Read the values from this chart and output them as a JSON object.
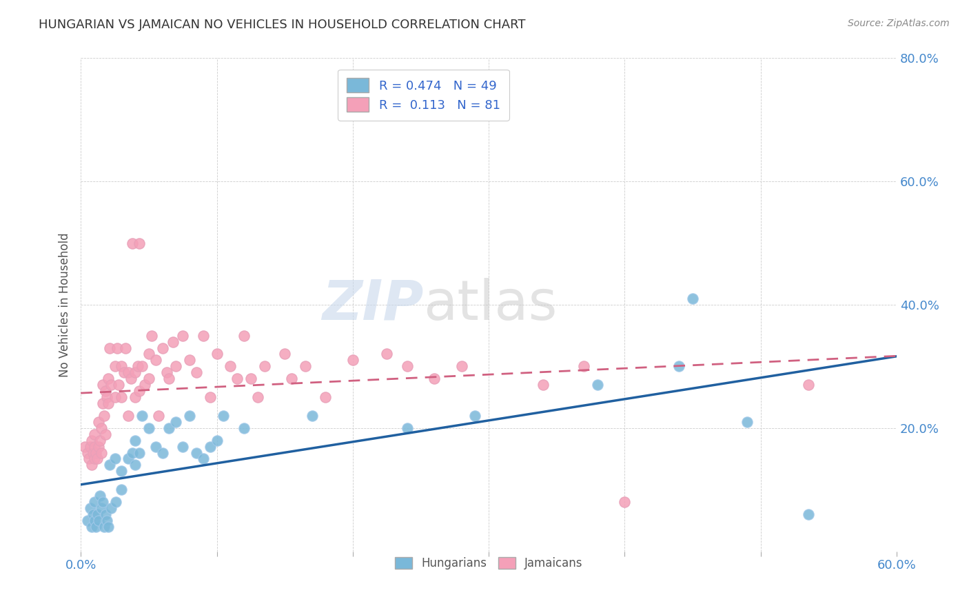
{
  "title": "HUNGARIAN VS JAMAICAN NO VEHICLES IN HOUSEHOLD CORRELATION CHART",
  "source": "Source: ZipAtlas.com",
  "ylabel": "No Vehicles in Household",
  "xlim": [
    0.0,
    0.6
  ],
  "ylim": [
    0.0,
    0.8
  ],
  "xticks": [
    0.0,
    0.1,
    0.2,
    0.3,
    0.4,
    0.5,
    0.6
  ],
  "yticks": [
    0.0,
    0.2,
    0.4,
    0.6,
    0.8
  ],
  "xtick_labels_show": [
    "0.0%",
    "",
    "",
    "",
    "",
    "",
    "60.0%"
  ],
  "ytick_labels": [
    "",
    "20.0%",
    "40.0%",
    "60.0%",
    "80.0%"
  ],
  "watermark_zip": "ZIP",
  "watermark_atlas": "atlas",
  "hungarian_color": "#7ab8d9",
  "jamaican_color": "#f4a0b8",
  "hungarian_line_color": "#2060a0",
  "jamaican_line_color": "#d06080",
  "hungarian_scatter": [
    [
      0.005,
      0.05
    ],
    [
      0.007,
      0.07
    ],
    [
      0.008,
      0.04
    ],
    [
      0.009,
      0.06
    ],
    [
      0.01,
      0.08
    ],
    [
      0.01,
      0.05
    ],
    [
      0.011,
      0.04
    ],
    [
      0.012,
      0.06
    ],
    [
      0.013,
      0.05
    ],
    [
      0.014,
      0.09
    ],
    [
      0.015,
      0.07
    ],
    [
      0.016,
      0.08
    ],
    [
      0.017,
      0.04
    ],
    [
      0.018,
      0.06
    ],
    [
      0.019,
      0.05
    ],
    [
      0.02,
      0.04
    ],
    [
      0.021,
      0.14
    ],
    [
      0.022,
      0.07
    ],
    [
      0.025,
      0.15
    ],
    [
      0.026,
      0.08
    ],
    [
      0.03,
      0.13
    ],
    [
      0.03,
      0.1
    ],
    [
      0.035,
      0.15
    ],
    [
      0.038,
      0.16
    ],
    [
      0.04,
      0.14
    ],
    [
      0.04,
      0.18
    ],
    [
      0.043,
      0.16
    ],
    [
      0.045,
      0.22
    ],
    [
      0.05,
      0.2
    ],
    [
      0.055,
      0.17
    ],
    [
      0.06,
      0.16
    ],
    [
      0.065,
      0.2
    ],
    [
      0.07,
      0.21
    ],
    [
      0.075,
      0.17
    ],
    [
      0.08,
      0.22
    ],
    [
      0.085,
      0.16
    ],
    [
      0.09,
      0.15
    ],
    [
      0.095,
      0.17
    ],
    [
      0.1,
      0.18
    ],
    [
      0.105,
      0.22
    ],
    [
      0.12,
      0.2
    ],
    [
      0.17,
      0.22
    ],
    [
      0.24,
      0.2
    ],
    [
      0.29,
      0.22
    ],
    [
      0.38,
      0.27
    ],
    [
      0.44,
      0.3
    ],
    [
      0.45,
      0.41
    ],
    [
      0.49,
      0.21
    ],
    [
      0.535,
      0.06
    ]
  ],
  "jamaican_scatter": [
    [
      0.003,
      0.17
    ],
    [
      0.005,
      0.16
    ],
    [
      0.006,
      0.15
    ],
    [
      0.007,
      0.17
    ],
    [
      0.008,
      0.14
    ],
    [
      0.008,
      0.18
    ],
    [
      0.009,
      0.16
    ],
    [
      0.01,
      0.15
    ],
    [
      0.01,
      0.17
    ],
    [
      0.01,
      0.19
    ],
    [
      0.011,
      0.16
    ],
    [
      0.012,
      0.15
    ],
    [
      0.013,
      0.17
    ],
    [
      0.013,
      0.21
    ],
    [
      0.014,
      0.18
    ],
    [
      0.015,
      0.2
    ],
    [
      0.015,
      0.16
    ],
    [
      0.016,
      0.24
    ],
    [
      0.016,
      0.27
    ],
    [
      0.017,
      0.22
    ],
    [
      0.018,
      0.26
    ],
    [
      0.018,
      0.19
    ],
    [
      0.019,
      0.25
    ],
    [
      0.02,
      0.28
    ],
    [
      0.02,
      0.24
    ],
    [
      0.021,
      0.33
    ],
    [
      0.022,
      0.27
    ],
    [
      0.025,
      0.3
    ],
    [
      0.025,
      0.25
    ],
    [
      0.027,
      0.33
    ],
    [
      0.028,
      0.27
    ],
    [
      0.03,
      0.3
    ],
    [
      0.03,
      0.25
    ],
    [
      0.032,
      0.29
    ],
    [
      0.033,
      0.33
    ],
    [
      0.035,
      0.29
    ],
    [
      0.035,
      0.22
    ],
    [
      0.037,
      0.28
    ],
    [
      0.038,
      0.5
    ],
    [
      0.04,
      0.29
    ],
    [
      0.04,
      0.25
    ],
    [
      0.042,
      0.3
    ],
    [
      0.043,
      0.26
    ],
    [
      0.043,
      0.5
    ],
    [
      0.045,
      0.3
    ],
    [
      0.047,
      0.27
    ],
    [
      0.05,
      0.32
    ],
    [
      0.05,
      0.28
    ],
    [
      0.052,
      0.35
    ],
    [
      0.055,
      0.31
    ],
    [
      0.057,
      0.22
    ],
    [
      0.06,
      0.33
    ],
    [
      0.063,
      0.29
    ],
    [
      0.065,
      0.28
    ],
    [
      0.068,
      0.34
    ],
    [
      0.07,
      0.3
    ],
    [
      0.075,
      0.35
    ],
    [
      0.08,
      0.31
    ],
    [
      0.085,
      0.29
    ],
    [
      0.09,
      0.35
    ],
    [
      0.095,
      0.25
    ],
    [
      0.1,
      0.32
    ],
    [
      0.11,
      0.3
    ],
    [
      0.115,
      0.28
    ],
    [
      0.12,
      0.35
    ],
    [
      0.125,
      0.28
    ],
    [
      0.13,
      0.25
    ],
    [
      0.135,
      0.3
    ],
    [
      0.15,
      0.32
    ],
    [
      0.155,
      0.28
    ],
    [
      0.165,
      0.3
    ],
    [
      0.18,
      0.25
    ],
    [
      0.2,
      0.31
    ],
    [
      0.225,
      0.32
    ],
    [
      0.24,
      0.3
    ],
    [
      0.26,
      0.28
    ],
    [
      0.28,
      0.3
    ],
    [
      0.34,
      0.27
    ],
    [
      0.37,
      0.3
    ],
    [
      0.4,
      0.08
    ],
    [
      0.535,
      0.27
    ]
  ]
}
